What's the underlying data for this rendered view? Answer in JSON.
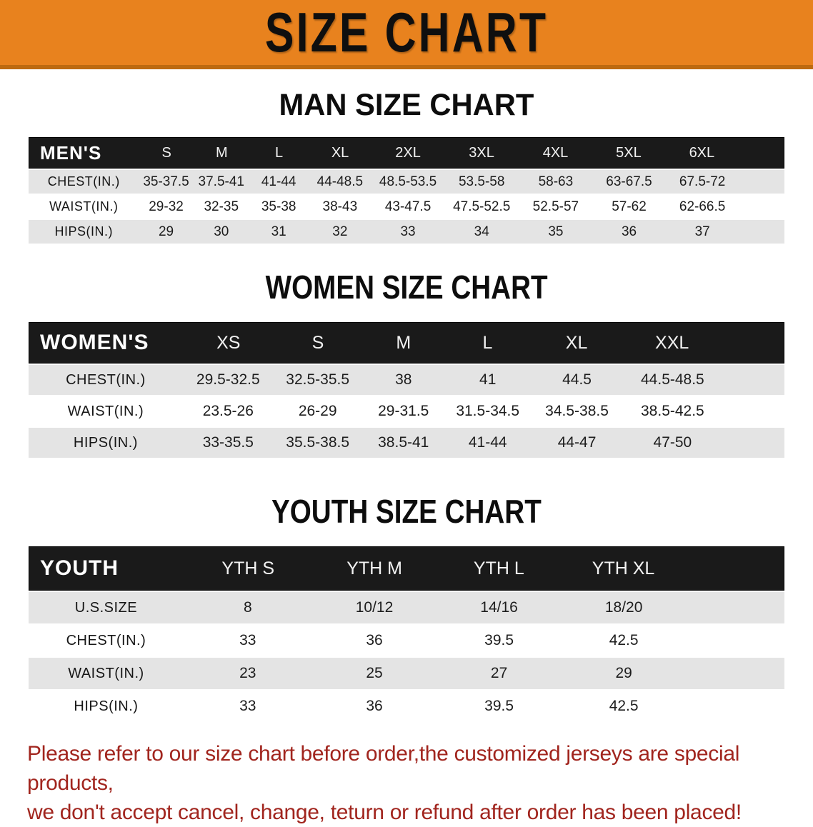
{
  "banner": {
    "title": "SIZE CHART",
    "bg_color": "#e8821e",
    "border_color": "#bd6a10",
    "text_color": "#0f0f0f"
  },
  "colors": {
    "table_header_bg": "#1a1a1a",
    "table_header_text": "#ffffff",
    "row_gray": "#e4e4e4",
    "row_white": "#ffffff",
    "disclaimer_red": "#a1251e"
  },
  "sections": [
    {
      "heading": "MAN SIZE CHART",
      "label": "MEN'S",
      "columns": [
        "S",
        "M",
        "L",
        "XL",
        "2XL",
        "3XL",
        "4XL",
        "5XL",
        "6XL"
      ],
      "rows": [
        {
          "label": "CHEST(IN.)",
          "values": [
            "35-37.5",
            "37.5-41",
            "41-44",
            "44-48.5",
            "48.5-53.5",
            "53.5-58",
            "58-63",
            "63-67.5",
            "67.5-72"
          ]
        },
        {
          "label": "WAIST(IN.)",
          "values": [
            "29-32",
            "32-35",
            "35-38",
            "38-43",
            "43-47.5",
            "47.5-52.5",
            "52.5-57",
            "57-62",
            "62-66.5"
          ]
        },
        {
          "label": "HIPS(IN.)",
          "values": [
            "29",
            "30",
            "31",
            "32",
            "33",
            "34",
            "35",
            "36",
            "37"
          ]
        }
      ]
    },
    {
      "heading": "WOMEN SIZE CHART",
      "label": "WOMEN'S",
      "columns": [
        "XS",
        "S",
        "M",
        "L",
        "XL",
        "XXL"
      ],
      "rows": [
        {
          "label": "CHEST(IN.)",
          "values": [
            "29.5-32.5",
            "32.5-35.5",
            "38",
            "41",
            "44.5",
            "44.5-48.5"
          ]
        },
        {
          "label": "WAIST(IN.)",
          "values": [
            "23.5-26",
            "26-29",
            "29-31.5",
            "31.5-34.5",
            "34.5-38.5",
            "38.5-42.5"
          ]
        },
        {
          "label": "HIPS(IN.)",
          "values": [
            "33-35.5",
            "35.5-38.5",
            "38.5-41",
            "41-44",
            "44-47",
            "47-50"
          ]
        }
      ]
    },
    {
      "heading": "YOUTH SIZE CHART",
      "label": "YOUTH",
      "columns": [
        "YTH S",
        "YTH M",
        "YTH L",
        "YTH XL"
      ],
      "rows": [
        {
          "label": "U.S.SIZE",
          "values": [
            "8",
            "10/12",
            "14/16",
            "18/20"
          ]
        },
        {
          "label": "CHEST(IN.)",
          "values": [
            "33",
            "36",
            "39.5",
            "42.5"
          ]
        },
        {
          "label": "WAIST(IN.)",
          "values": [
            "23",
            "25",
            "27",
            "29"
          ]
        },
        {
          "label": "HIPS(IN.)",
          "values": [
            "33",
            "36",
            "39.5",
            "42.5"
          ]
        }
      ]
    }
  ],
  "disclaimer": {
    "line1": "Please refer to our size chart before order,the customized jerseys are special products,",
    "line2": "we don't accept cancel, change, teturn or refund after order has been placed!"
  }
}
